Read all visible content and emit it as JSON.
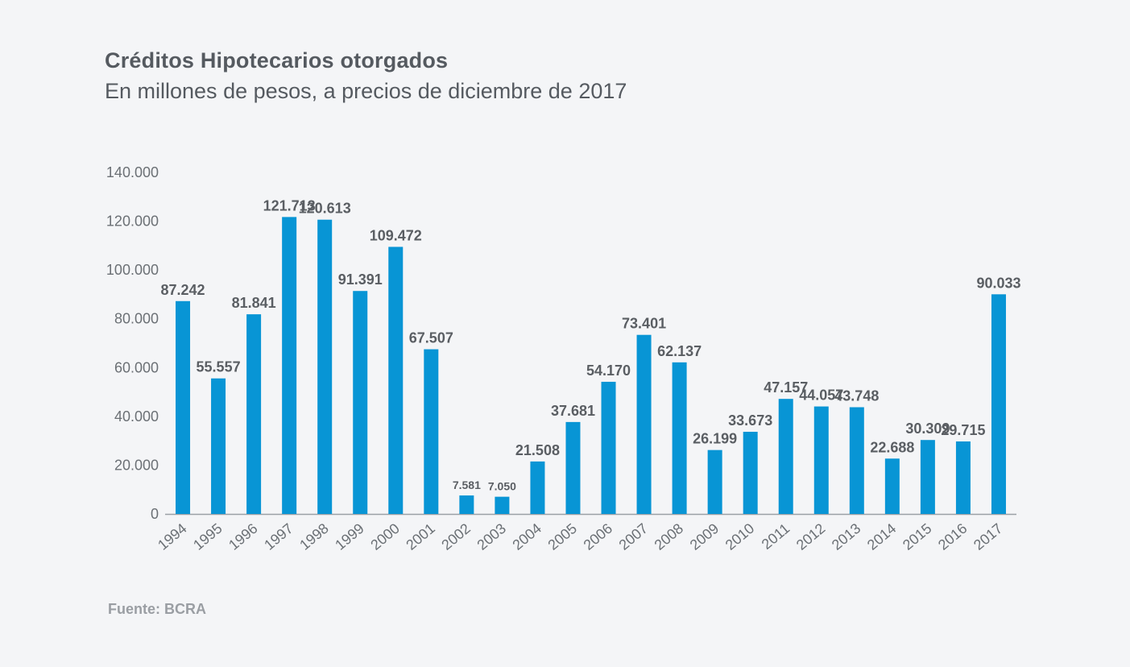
{
  "header": {
    "title": "Créditos Hipotecarios otorgados",
    "subtitle": "En millones de pesos, a precios de diciembre de 2017"
  },
  "footer": {
    "source": "Fuente: BCRA"
  },
  "colors": {
    "bar": "#0895d5",
    "axis": "#9aa0a6",
    "label": "#5a5e63",
    "background": "#f4f5f7"
  },
  "chart_data": {
    "type": "bar",
    "title": "Créditos Hipotecarios otorgados",
    "subtitle": "En millones de pesos, a precios de diciembre de 2017",
    "xlabel": "",
    "ylabel": "",
    "ylim": [
      0,
      140000
    ],
    "yticks": [
      0,
      20000,
      40000,
      60000,
      80000,
      100000,
      120000,
      140000
    ],
    "ytick_labels": [
      "0",
      "20.000",
      "40.000",
      "60.000",
      "80.000",
      "100.000",
      "120.000",
      "140.000"
    ],
    "grid": false,
    "legend": "none",
    "categories": [
      "1994",
      "1995",
      "1996",
      "1997",
      "1998",
      "1999",
      "2000",
      "2001",
      "2002",
      "2003",
      "2004",
      "2005",
      "2006",
      "2007",
      "2008",
      "2009",
      "2010",
      "2011",
      "2012",
      "2013",
      "2014",
      "2015",
      "2016",
      "2017"
    ],
    "values": [
      87242,
      55557,
      81841,
      121713,
      120613,
      91391,
      109472,
      67507,
      7581,
      7050,
      21508,
      37681,
      54170,
      73401,
      62137,
      26199,
      33673,
      47157,
      44057,
      43748,
      22688,
      30309,
      29715,
      90033
    ],
    "data_labels": [
      "87.242",
      "55.557",
      "81.841",
      "121.713",
      "120.613",
      "91.391",
      "109.472",
      "67.507",
      "7.581",
      "7.050",
      "21.508",
      "37.681",
      "54.170",
      "73.401",
      "62.137",
      "26.199",
      "33.673",
      "47.157",
      "44.057",
      "43.748",
      "22.688",
      "30.309",
      "29.715",
      "90.033"
    ]
  }
}
